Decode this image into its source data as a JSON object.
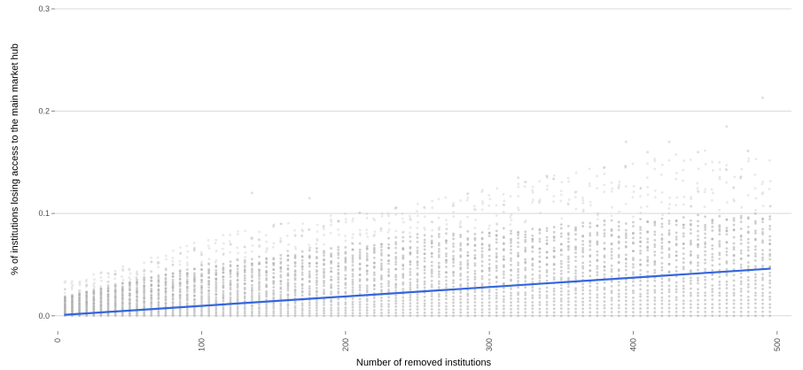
{
  "chart_data": {
    "type": "scatter",
    "title": "",
    "xlabel": "Number of removed institutions",
    "ylabel": "% of institutions losing access to the main market hub",
    "xlim": [
      -2,
      510
    ],
    "ylim": [
      -0.008,
      0.3
    ],
    "x_ticks": [
      {
        "value": 0,
        "label": "0"
      },
      {
        "value": 100,
        "label": "100"
      },
      {
        "value": 200,
        "label": "200"
      },
      {
        "value": 300,
        "label": "300"
      },
      {
        "value": 400,
        "label": "400"
      },
      {
        "value": 500,
        "label": "500"
      }
    ],
    "y_ticks": [
      {
        "value": 0.0,
        "label": "0.0"
      },
      {
        "value": 0.1,
        "label": "0.1"
      },
      {
        "value": 0.2,
        "label": "0.2"
      },
      {
        "value": 0.3,
        "label": "0.3"
      }
    ],
    "grid": "horizontal",
    "point_color": "#a9a9a9",
    "point_style": "many semi-transparent points in vertical columns, one column per x value",
    "x_range_of_points": [
      5,
      495
    ],
    "x_step": 5,
    "dense_band_upper": [
      [
        5,
        0.02
      ],
      [
        50,
        0.035
      ],
      [
        100,
        0.05
      ],
      [
        150,
        0.06
      ],
      [
        200,
        0.07
      ],
      [
        250,
        0.08
      ],
      [
        300,
        0.085
      ],
      [
        350,
        0.09
      ],
      [
        400,
        0.095
      ],
      [
        450,
        0.1
      ],
      [
        495,
        0.1
      ]
    ],
    "sparse_upper": [
      [
        5,
        0.035
      ],
      [
        50,
        0.05
      ],
      [
        100,
        0.075
      ],
      [
        150,
        0.09
      ],
      [
        200,
        0.1
      ],
      [
        250,
        0.11
      ],
      [
        300,
        0.125
      ],
      [
        350,
        0.14
      ],
      [
        400,
        0.15
      ],
      [
        450,
        0.165
      ],
      [
        495,
        0.16
      ]
    ],
    "outliers": [
      [
        135,
        0.12
      ],
      [
        175,
        0.115
      ],
      [
        320,
        0.135
      ],
      [
        380,
        0.145
      ],
      [
        395,
        0.17
      ],
      [
        410,
        0.16
      ],
      [
        425,
        0.17
      ],
      [
        445,
        0.16
      ],
      [
        465,
        0.185
      ],
      [
        490,
        0.213
      ]
    ],
    "trend_line": {
      "color": "#3366dd",
      "points": [
        [
          5,
          0.001
        ],
        [
          495,
          0.046
        ]
      ]
    }
  },
  "colors": {
    "gridline": "#d9d9d9",
    "tick_mark": "#888888"
  }
}
